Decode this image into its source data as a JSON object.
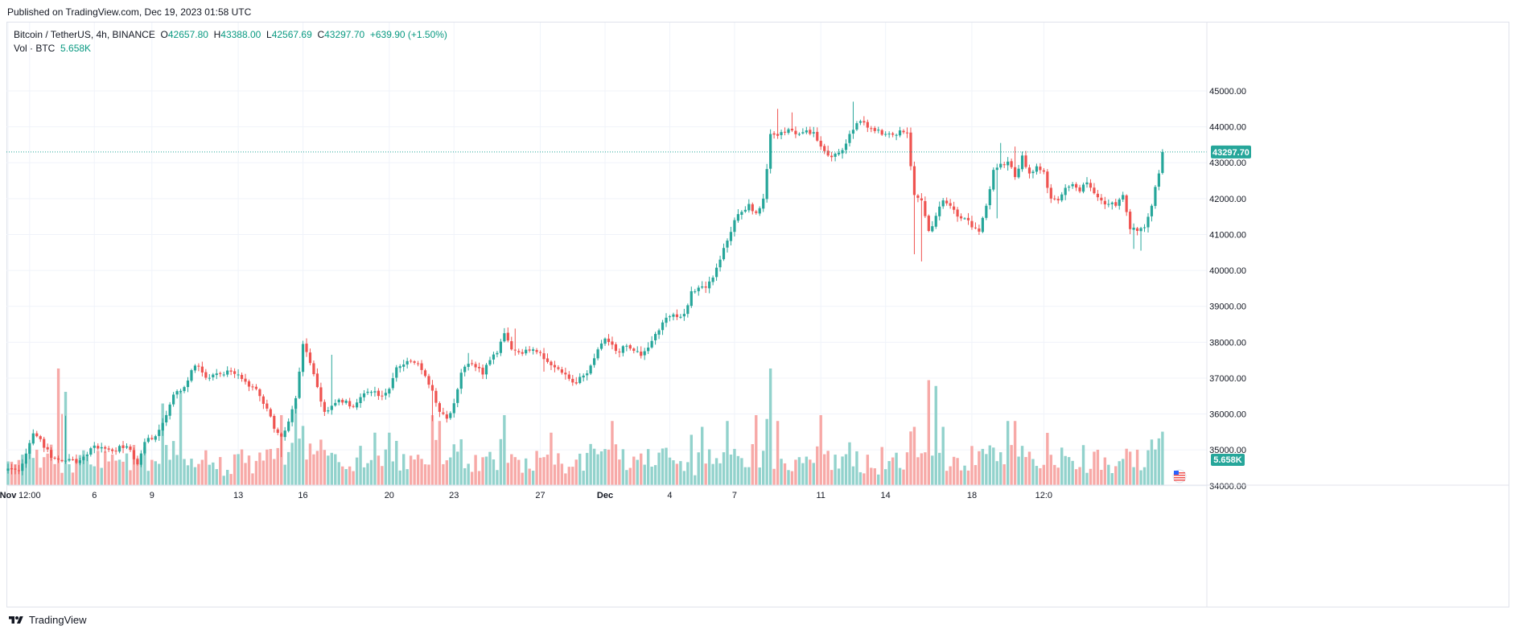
{
  "published": "Published on TradingView.com, Dec 19, 2023 01:58 UTC",
  "legend": {
    "symbol": "Bitcoin / TetherUS, 4h, BINANCE",
    "open_label": "O",
    "open": "42657.80",
    "high_label": "H",
    "high": "43388.00",
    "low_label": "L",
    "low": "42567.69",
    "close_label": "C",
    "close": "43297.70",
    "change": "+639.90 (+1.50%)",
    "vol_label": "Vol · BTC",
    "vol_value": "5.658K"
  },
  "footer": {
    "brand": "TradingView"
  },
  "colors": {
    "up": "#26a69a",
    "down": "#ef5350",
    "up_vol": "#92d2cc",
    "down_vol": "#f7a9a7",
    "grid": "#f0f3fa",
    "text": "#131722",
    "accent": "#089981"
  },
  "chart_data": {
    "type": "candlestick",
    "interval": "4h",
    "price_axis": {
      "ticks": [
        34000,
        35000,
        36000,
        37000,
        38000,
        39000,
        40000,
        41000,
        42000,
        43000,
        44000,
        45000
      ],
      "tick_labels": [
        "34000.00",
        "35000.00",
        "36000.00",
        "37000.00",
        "38000.00",
        "39000.00",
        "40000.00",
        "41000.00",
        "42000.00",
        "43000.00",
        "44000.00",
        "45000.00"
      ],
      "last_price_label": "43297.70",
      "last_price": 43297.7,
      "volume_label": "5.658K"
    },
    "time_axis": {
      "labels": [
        "Nov",
        "12:00",
        "6",
        "9",
        "13",
        "16",
        "20",
        "23",
        "27",
        "Dec",
        "4",
        "7",
        "11",
        "14",
        "18",
        "12:0"
      ],
      "bold": [
        "Nov",
        "Dec"
      ],
      "label_bar_index": [
        0,
        6,
        24,
        40,
        64,
        82,
        106,
        124,
        148,
        166,
        184,
        202,
        226,
        244,
        268,
        288
      ]
    },
    "grid": true,
    "close_anchors": [
      [
        0,
        34480
      ],
      [
        3,
        34420
      ],
      [
        7,
        35460
      ],
      [
        9,
        35300
      ],
      [
        12,
        34780
      ],
      [
        16,
        34700
      ],
      [
        20,
        34710
      ],
      [
        24,
        35120
      ],
      [
        28,
        35010
      ],
      [
        32,
        35050
      ],
      [
        34,
        35000
      ],
      [
        36,
        34600
      ],
      [
        38,
        35220
      ],
      [
        40,
        35300
      ],
      [
        42,
        35560
      ],
      [
        44,
        35970
      ],
      [
        46,
        36540
      ],
      [
        49,
        36750
      ],
      [
        51,
        37220
      ],
      [
        53,
        37320
      ],
      [
        55,
        37010
      ],
      [
        58,
        37130
      ],
      [
        62,
        37180
      ],
      [
        64,
        37100
      ],
      [
        66,
        36900
      ],
      [
        68,
        36760
      ],
      [
        70,
        36500
      ],
      [
        72,
        36150
      ],
      [
        74,
        35590
      ],
      [
        76,
        35370
      ],
      [
        78,
        35790
      ],
      [
        80,
        36440
      ],
      [
        82,
        37950
      ],
      [
        84,
        37420
      ],
      [
        86,
        36750
      ],
      [
        88,
        36060
      ],
      [
        90,
        36230
      ],
      [
        92,
        36400
      ],
      [
        94,
        36370
      ],
      [
        96,
        36200
      ],
      [
        98,
        36470
      ],
      [
        100,
        36620
      ],
      [
        104,
        36500
      ],
      [
        106,
        36700
      ],
      [
        108,
        37300
      ],
      [
        110,
        37380
      ],
      [
        112,
        37460
      ],
      [
        114,
        37410
      ],
      [
        116,
        37060
      ],
      [
        118,
        36650
      ],
      [
        120,
        36060
      ],
      [
        122,
        35870
      ],
      [
        124,
        36300
      ],
      [
        126,
        37150
      ],
      [
        128,
        37400
      ],
      [
        130,
        37300
      ],
      [
        132,
        37100
      ],
      [
        134,
        37500
      ],
      [
        136,
        37700
      ],
      [
        138,
        38250
      ],
      [
        140,
        37800
      ],
      [
        142,
        37720
      ],
      [
        144,
        37790
      ],
      [
        146,
        37800
      ],
      [
        148,
        37700
      ],
      [
        150,
        37450
      ],
      [
        152,
        37300
      ],
      [
        154,
        37150
      ],
      [
        156,
        36980
      ],
      [
        158,
        36850
      ],
      [
        160,
        37070
      ],
      [
        162,
        37350
      ],
      [
        164,
        37800
      ],
      [
        166,
        38100
      ],
      [
        168,
        37930
      ],
      [
        170,
        37720
      ],
      [
        172,
        37900
      ],
      [
        174,
        37760
      ],
      [
        176,
        37620
      ],
      [
        178,
        37850
      ],
      [
        180,
        38230
      ],
      [
        182,
        38550
      ],
      [
        184,
        38720
      ],
      [
        186,
        38700
      ],
      [
        188,
        38790
      ],
      [
        190,
        39420
      ],
      [
        192,
        39520
      ],
      [
        194,
        39520
      ],
      [
        196,
        39800
      ],
      [
        198,
        40300
      ],
      [
        200,
        40830
      ],
      [
        202,
        41400
      ],
      [
        204,
        41630
      ],
      [
        206,
        41850
      ],
      [
        208,
        41600
      ],
      [
        210,
        42000
      ],
      [
        212,
        43800
      ],
      [
        214,
        43750
      ],
      [
        216,
        43850
      ],
      [
        218,
        43900
      ],
      [
        220,
        43800
      ],
      [
        222,
        43900
      ],
      [
        224,
        43850
      ],
      [
        226,
        43450
      ],
      [
        228,
        43200
      ],
      [
        230,
        43250
      ],
      [
        232,
        43350
      ],
      [
        234,
        43800
      ],
      [
        236,
        44100
      ],
      [
        238,
        44120
      ],
      [
        240,
        43950
      ],
      [
        242,
        43920
      ],
      [
        244,
        43800
      ],
      [
        246,
        43780
      ],
      [
        248,
        43900
      ],
      [
        250,
        43830
      ],
      [
        252,
        42100
      ],
      [
        254,
        41950
      ],
      [
        256,
        41100
      ],
      [
        258,
        41520
      ],
      [
        260,
        41950
      ],
      [
        262,
        41800
      ],
      [
        264,
        41500
      ],
      [
        266,
        41450
      ],
      [
        268,
        41200
      ],
      [
        270,
        41080
      ],
      [
        272,
        41800
      ],
      [
        274,
        42800
      ],
      [
        276,
        42970
      ],
      [
        278,
        43030
      ],
      [
        280,
        42600
      ],
      [
        282,
        43200
      ],
      [
        284,
        42700
      ],
      [
        286,
        42900
      ],
      [
        288,
        42750
      ],
      [
        290,
        42000
      ],
      [
        292,
        41950
      ],
      [
        294,
        42300
      ],
      [
        296,
        42400
      ],
      [
        298,
        42200
      ],
      [
        300,
        42450
      ],
      [
        302,
        42150
      ],
      [
        304,
        41950
      ],
      [
        306,
        41850
      ],
      [
        308,
        41800
      ],
      [
        310,
        42100
      ],
      [
        312,
        41150
      ],
      [
        314,
        41100
      ],
      [
        316,
        41200
      ],
      [
        318,
        41800
      ],
      [
        320,
        42700
      ],
      [
        321,
        43297.7
      ]
    ],
    "high_spikes": [
      [
        15,
        36000
      ],
      [
        16,
        35950
      ],
      [
        74,
        36000
      ],
      [
        90,
        37650
      ],
      [
        128,
        37700
      ],
      [
        141,
        38380
      ],
      [
        214,
        44500
      ],
      [
        218,
        44400
      ],
      [
        235,
        44700
      ],
      [
        276,
        43550
      ],
      [
        280,
        43450
      ]
    ],
    "low_spikes": [
      [
        76,
        34800
      ],
      [
        118,
        35800
      ],
      [
        149,
        37180
      ],
      [
        212,
        42700
      ],
      [
        252,
        40450
      ],
      [
        254,
        40250
      ],
      [
        275,
        41450
      ],
      [
        313,
        40600
      ],
      [
        315,
        40550
      ]
    ],
    "volume_peaks": [
      [
        14,
        1.0
      ],
      [
        16,
        0.8
      ],
      [
        43,
        0.7
      ],
      [
        48,
        0.8
      ],
      [
        76,
        0.6
      ],
      [
        80,
        0.7
      ],
      [
        102,
        0.45
      ],
      [
        106,
        0.45
      ],
      [
        118,
        0.6
      ],
      [
        120,
        0.55
      ],
      [
        138,
        0.6
      ],
      [
        151,
        0.45
      ],
      [
        168,
        0.55
      ],
      [
        193,
        0.5
      ],
      [
        200,
        0.55
      ],
      [
        208,
        0.6
      ],
      [
        212,
        1.0
      ],
      [
        214,
        0.55
      ],
      [
        226,
        0.6
      ],
      [
        252,
        0.5
      ],
      [
        256,
        0.9
      ],
      [
        258,
        0.85
      ],
      [
        260,
        0.5
      ],
      [
        278,
        0.55
      ],
      [
        280,
        0.55
      ]
    ]
  }
}
